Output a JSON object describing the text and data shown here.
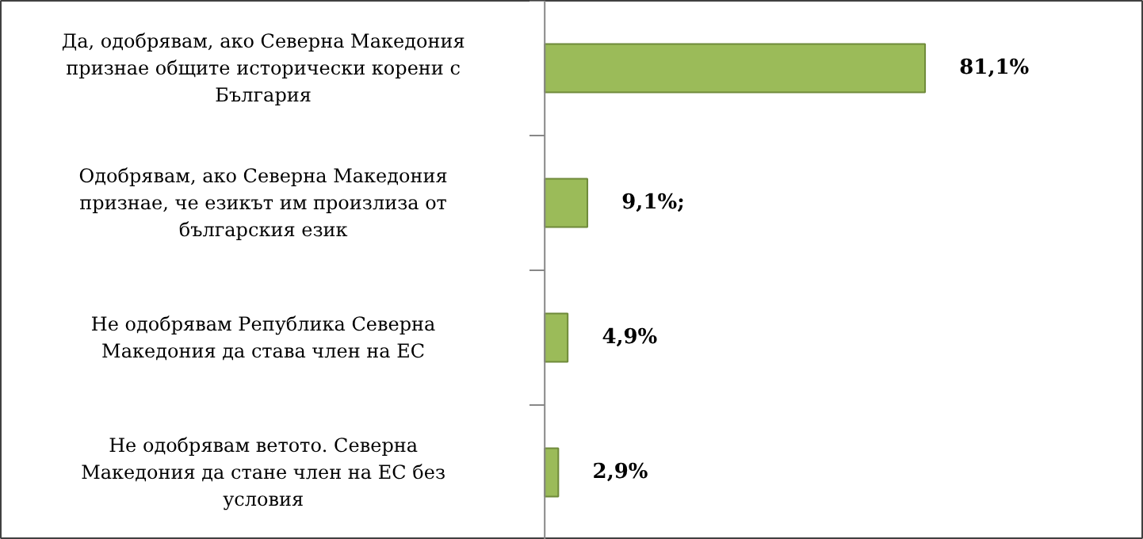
{
  "chart_data": {
    "type": "bar",
    "orientation": "horizontal",
    "categories": [
      "Да, одобрявам, ако Северна Македония признае общите исторически корени с България",
      "Одобрявам, ако Северна Македония признае, че езикът им произлиза от българския език",
      "Не одобрявам Република Северна Македония да става член на ЕС",
      "Не одобрявам ветото. Северна Македония да стане член на ЕС без условия"
    ],
    "values": [
      81.1,
      9.1,
      4.9,
      2.9
    ],
    "color": "#9bbb59",
    "value_labels": [
      "81,1%",
      "9,1%;",
      "4,9%",
      "2,9%"
    ]
  }
}
